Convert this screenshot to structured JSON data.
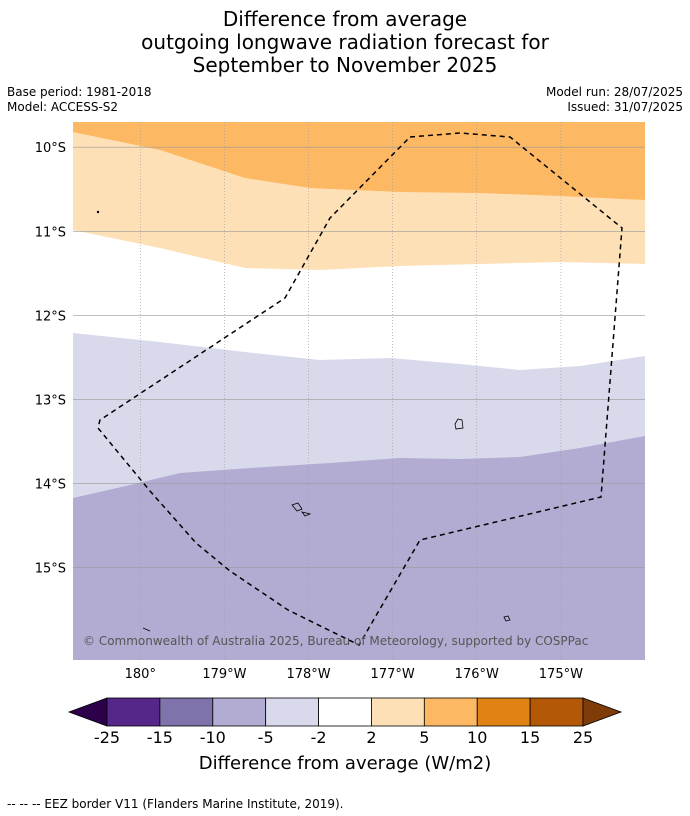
{
  "title": {
    "line1": "Difference from average",
    "line2": "outgoing longwave radiation forecast for",
    "line3": "September to November 2025"
  },
  "meta": {
    "base_period": "Base period: 1981-2018",
    "model": "Model: ACCESS-S2",
    "model_run": "Model run: 28/07/2025",
    "issued": "Issued: 31/07/2025"
  },
  "map": {
    "lon_range": [
      179.2,
      -174.0
    ],
    "lat_range": [
      -9.7,
      -16.1
    ],
    "lat_ticks": [
      "10°S",
      "11°S",
      "12°S",
      "13°S",
      "14°S",
      "15°S"
    ],
    "lat_values": [
      -10,
      -11,
      -12,
      -13,
      -14,
      -15
    ],
    "lon_ticks": [
      "180°",
      "179°W",
      "178°W",
      "177°W",
      "176°W",
      "175°W"
    ],
    "lon_values": [
      180,
      -179,
      -178,
      -177,
      -176,
      -175
    ],
    "copyright": "© Commonwealth of Australia 2025, Bureau of Meteorology, supported by COSPPac",
    "colors": {
      "band_5_10": "#fdb863",
      "band_2_5": "#fee0b6",
      "band_m2_2": "#ffffff",
      "band_m5_m2": "#d8daeb",
      "band_m10_m5": "#b2abd2",
      "gridline": "#999999",
      "eez_line": "#000000"
    }
  },
  "colorbar": {
    "title": "Difference from average (W/m2)",
    "ticks": [
      "-25",
      "-15",
      "-10",
      "-5",
      "-2",
      "2",
      "5",
      "10",
      "15",
      "25"
    ],
    "colors": [
      "#2d004b",
      "#542788",
      "#8073ac",
      "#b2abd2",
      "#d8daeb",
      "#ffffff",
      "#fee0b6",
      "#fdb863",
      "#e08214",
      "#b35806",
      "#7f3b08"
    ]
  },
  "footnote": "--  --  -- EEZ border V11 (Flanders Marine Institute, 2019)."
}
